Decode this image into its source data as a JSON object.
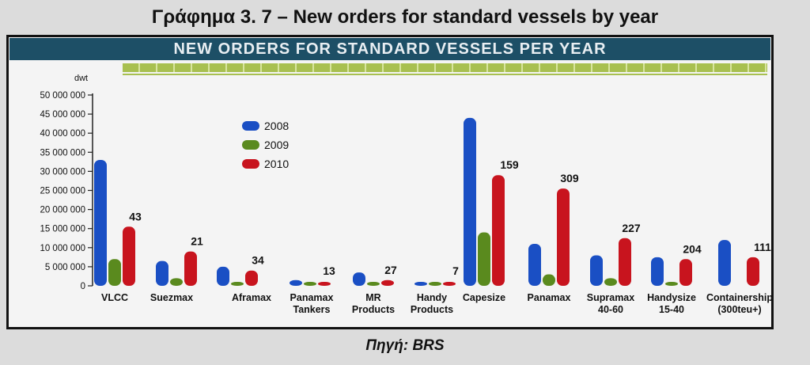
{
  "figure_title": "Γράφημα 3. 7 – New orders for standard vessels by year",
  "banner_title": "NEW ORDERS FOR STANDARD VESSELS PER YEAR",
  "source": "Πηγή: BRS",
  "colors": {
    "2008": "#1a4fc4",
    "2009": "#5a8a1e",
    "2010": "#c8141e",
    "banner": "#1d4f66",
    "accent": "#a8c050"
  },
  "chart_data": {
    "type": "bar",
    "title": "NEW ORDERS FOR STANDARD VESSELS PER YEAR",
    "ylabel": "dwt",
    "xlabel": "",
    "ylim": [
      0,
      50000000
    ],
    "yticks": [
      "0",
      "5 000 000",
      "10 000 000",
      "15 000 000",
      "20 000 000",
      "25 000 000",
      "30 000 000",
      "35 000 000",
      "40 000 000",
      "45 000 000",
      "50 000 000"
    ],
    "legend_position": "top-left",
    "categories": [
      [
        "VLCC"
      ],
      [
        "Suezmax"
      ],
      [
        "Aframax"
      ],
      [
        "Panamax",
        "Tankers"
      ],
      [
        "MR",
        "Products"
      ],
      [
        "Handy",
        "Products"
      ],
      [
        "Capesize"
      ],
      [
        "Panamax"
      ],
      [
        "Supramax",
        "40-60"
      ],
      [
        "Handysize",
        "15-40"
      ],
      [
        "Containership",
        "(300teu+)"
      ]
    ],
    "series": [
      {
        "name": "2008",
        "values": [
          33000000,
          6500000,
          5000000,
          1500000,
          3500000,
          500000,
          44000000,
          11000000,
          8000000,
          7500000,
          12000000
        ]
      },
      {
        "name": "2009",
        "values": [
          7000000,
          2000000,
          500000,
          500000,
          700000,
          400000,
          14000000,
          3000000,
          2000000,
          1000000,
          0
        ]
      },
      {
        "name": "2010",
        "values": [
          15500000,
          9000000,
          4000000,
          1000000,
          1500000,
          200000,
          29000000,
          25500000,
          12500000,
          7000000,
          7500000
        ]
      }
    ],
    "annotations": [
      "43",
      "21",
      "34",
      "13",
      "27",
      "7",
      "159",
      "309",
      "227",
      "204",
      "111"
    ]
  }
}
